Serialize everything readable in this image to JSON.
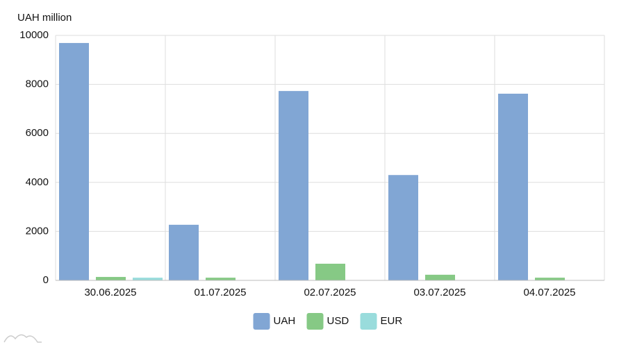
{
  "chart_data": {
    "type": "bar",
    "y_label": "UAH million",
    "categories": [
      "30.06.2025",
      "01.07.2025",
      "02.07.2025",
      "03.07.2025",
      "04.07.2025"
    ],
    "series": [
      {
        "name": "UAH",
        "color": "#81a6d4",
        "values": [
          9690,
          2270,
          7730,
          4300,
          7620
        ]
      },
      {
        "name": "USD",
        "color": "#86c985",
        "values": [
          140,
          110,
          680,
          230,
          110
        ]
      },
      {
        "name": "EUR",
        "color": "#99dcdc",
        "values": [
          110,
          10,
          10,
          10,
          10
        ]
      }
    ],
    "ylim": [
      0,
      10000
    ],
    "yticks": [
      0,
      2000,
      4000,
      6000,
      8000,
      10000
    ],
    "grid": true,
    "legend": "bottom"
  }
}
